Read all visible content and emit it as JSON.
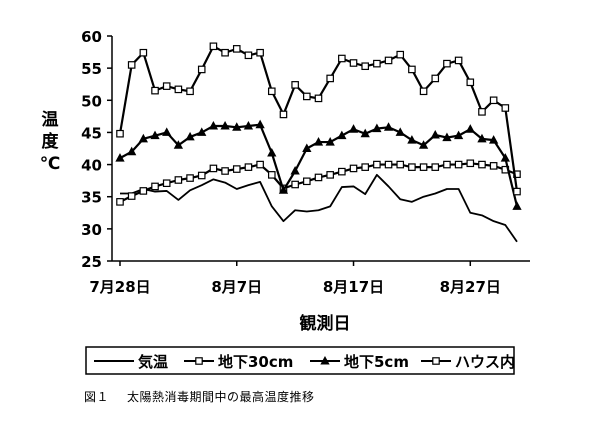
{
  "chart_data": {
    "type": "line",
    "title": "",
    "ylabel": "温度℃",
    "ylabel_chars": [
      "温",
      "度",
      "℃"
    ],
    "xlabel": "観測日",
    "ylim": [
      25,
      60
    ],
    "yticks": [
      25,
      30,
      35,
      40,
      45,
      50,
      55,
      60
    ],
    "xticks": [
      {
        "day": 0,
        "label": "7月28日"
      },
      {
        "day": 10,
        "label": "8月7日"
      },
      {
        "day": 20,
        "label": "8月17日"
      },
      {
        "day": 30,
        "label": "8月27日"
      }
    ],
    "x": [
      0,
      1,
      2,
      3,
      4,
      5,
      6,
      7,
      8,
      9,
      10,
      11,
      12,
      13,
      14,
      15,
      16,
      17,
      18,
      19,
      20,
      21,
      22,
      23,
      24,
      25,
      26,
      27,
      28,
      29,
      30,
      31,
      32,
      33,
      34
    ],
    "legend_position": "bottom",
    "series": [
      {
        "name": "気温",
        "marker": "none",
        "color": "#000000",
        "values": [
          35.5,
          35.5,
          36.2,
          35.8,
          35.9,
          34.5,
          36.0,
          36.8,
          37.7,
          37.2,
          36.2,
          36.8,
          37.3,
          33.5,
          31.2,
          32.9,
          32.7,
          32.9,
          33.5,
          36.5,
          36.6,
          35.4,
          38.4,
          36.6,
          34.6,
          34.2,
          35.0,
          35.5,
          36.2,
          36.2,
          32.5,
          32.1,
          31.2,
          30.6,
          28.0
        ]
      },
      {
        "name": "地下30cm",
        "marker": "square",
        "color": "#000000",
        "values": [
          34.2,
          35.1,
          35.9,
          36.6,
          37.1,
          37.6,
          37.9,
          38.3,
          39.4,
          39.0,
          39.3,
          39.6,
          40.0,
          38.4,
          36.3,
          36.9,
          37.4,
          38.0,
          38.4,
          38.9,
          39.4,
          39.6,
          40.0,
          40.0,
          40.0,
          39.6,
          39.6,
          39.6,
          40.0,
          40.0,
          40.2,
          40.0,
          39.8,
          39.2,
          38.5
        ]
      },
      {
        "name": "地下5cm",
        "marker": "triangle",
        "color": "#000000",
        "values": [
          41.0,
          42.0,
          44.0,
          44.5,
          45.0,
          43.0,
          44.3,
          45.0,
          46.0,
          46.0,
          45.8,
          46.0,
          46.2,
          41.8,
          36.0,
          39.0,
          42.5,
          43.5,
          43.5,
          44.5,
          45.5,
          44.8,
          45.6,
          45.8,
          45.0,
          43.8,
          43.0,
          44.6,
          44.2,
          44.5,
          45.5,
          44.0,
          43.8,
          41.0,
          33.5
        ]
      },
      {
        "name": "ハウス内",
        "marker": "square",
        "color": "#000000",
        "values": [
          44.8,
          55.5,
          57.4,
          51.5,
          52.2,
          51.7,
          51.4,
          54.8,
          58.4,
          57.4,
          58.0,
          57.0,
          57.4,
          51.4,
          47.8,
          52.4,
          50.6,
          50.3,
          53.4,
          56.5,
          55.8,
          55.3,
          55.7,
          56.2,
          57.1,
          54.8,
          51.4,
          53.4,
          55.7,
          56.2,
          52.8,
          48.2,
          50.0,
          48.8,
          35.8
        ]
      }
    ]
  },
  "caption": {
    "number": "図１",
    "text": "太陽熱消毒期間中の最高温度推移"
  }
}
